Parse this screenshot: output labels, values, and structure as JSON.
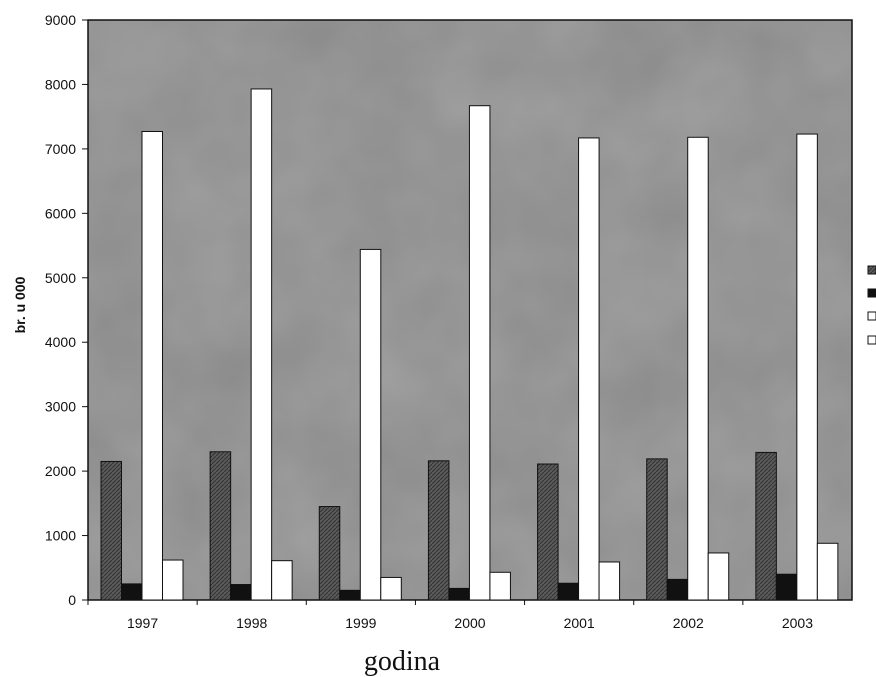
{
  "chart_data": {
    "type": "bar",
    "title": "",
    "xlabel": "godina",
    "ylabel": "br. u 000",
    "ylim": [
      0,
      9000
    ],
    "yticks": [
      0,
      1000,
      2000,
      3000,
      4000,
      5000,
      6000,
      7000,
      8000,
      9000
    ],
    "categories": [
      "1997",
      "1998",
      "1999",
      "2000",
      "2001",
      "2002",
      "2003"
    ],
    "grid": false,
    "legend_position": "right",
    "series": [
      {
        "color": "#555555",
        "pattern": "dark-hatched",
        "values": [
          2150,
          2300,
          1450,
          2160,
          2110,
          2190,
          2290
        ]
      },
      {
        "color": "#111111",
        "pattern": "solid-black",
        "values": [
          250,
          240,
          150,
          180,
          260,
          320,
          400
        ]
      },
      {
        "color": "#ffffff",
        "pattern": "white",
        "values": [
          7270,
          7930,
          5440,
          7670,
          7170,
          7180,
          7230
        ]
      },
      {
        "color": "#ffffff",
        "pattern": "white",
        "values": [
          620,
          610,
          350,
          430,
          590,
          730,
          880
        ]
      }
    ],
    "plot_background": "#8a8a8a"
  }
}
